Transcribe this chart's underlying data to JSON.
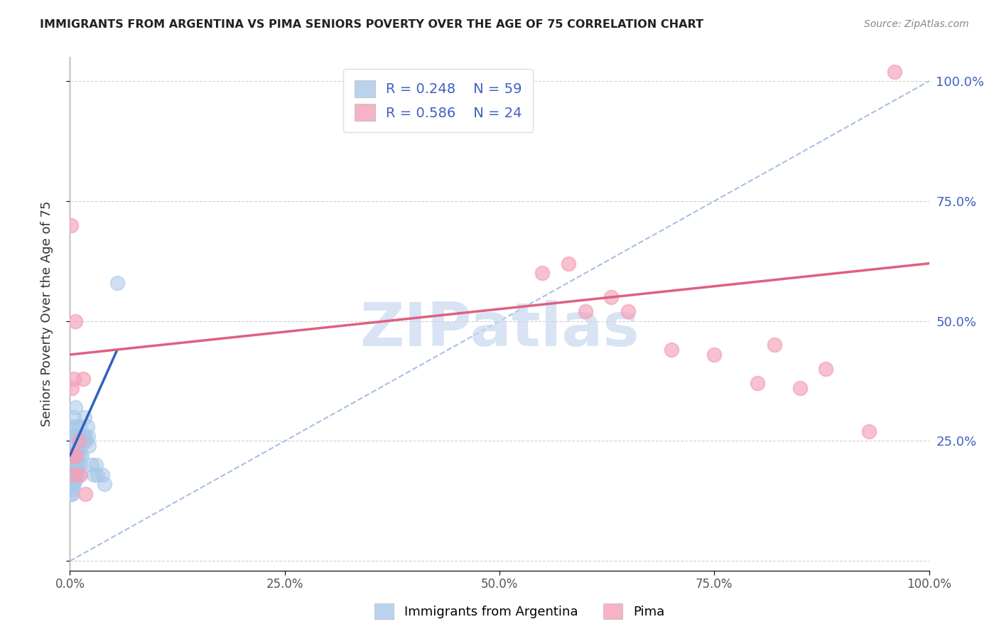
{
  "title": "IMMIGRANTS FROM ARGENTINA VS PIMA SENIORS POVERTY OVER THE AGE OF 75 CORRELATION CHART",
  "source": "Source: ZipAtlas.com",
  "ylabel": "Seniors Poverty Over the Age of 75",
  "xlim": [
    0,
    1.0
  ],
  "ylim": [
    -0.02,
    1.05
  ],
  "xticks": [
    0,
    0.25,
    0.5,
    0.75,
    1.0
  ],
  "xtick_labels": [
    "0.0%",
    "25.0%",
    "50.0%",
    "75.0%",
    "100.0%"
  ],
  "yticks": [
    0.0,
    0.25,
    0.5,
    0.75,
    1.0
  ],
  "ytick_labels_right": [
    "",
    "25.0%",
    "50.0%",
    "75.0%",
    "100.0%"
  ],
  "legend_r1": "R = 0.248",
  "legend_n1": "N = 59",
  "legend_r2": "R = 0.586",
  "legend_n2": "N = 24",
  "blue_color": "#a8c8e8",
  "pink_color": "#f4a0b8",
  "blue_line_color": "#3060c0",
  "pink_line_color": "#e06080",
  "dash_color": "#a0b8e0",
  "watermark_color": "#c8d8f0",
  "blue_x": [
    0.001,
    0.001,
    0.001,
    0.001,
    0.001,
    0.002,
    0.002,
    0.002,
    0.002,
    0.002,
    0.002,
    0.003,
    0.003,
    0.003,
    0.003,
    0.003,
    0.004,
    0.004,
    0.004,
    0.004,
    0.005,
    0.005,
    0.005,
    0.005,
    0.006,
    0.006,
    0.006,
    0.006,
    0.007,
    0.007,
    0.007,
    0.008,
    0.008,
    0.008,
    0.009,
    0.009,
    0.01,
    0.01,
    0.011,
    0.011,
    0.012,
    0.012,
    0.013,
    0.014,
    0.015,
    0.016,
    0.017,
    0.018,
    0.019,
    0.02,
    0.021,
    0.022,
    0.025,
    0.028,
    0.03,
    0.032,
    0.038,
    0.04,
    0.055
  ],
  "blue_y": [
    0.14,
    0.16,
    0.17,
    0.18,
    0.2,
    0.14,
    0.16,
    0.18,
    0.2,
    0.22,
    0.25,
    0.15,
    0.17,
    0.2,
    0.22,
    0.28,
    0.18,
    0.2,
    0.22,
    0.26,
    0.16,
    0.18,
    0.22,
    0.3,
    0.17,
    0.19,
    0.22,
    0.32,
    0.18,
    0.2,
    0.28,
    0.2,
    0.23,
    0.26,
    0.2,
    0.22,
    0.18,
    0.24,
    0.22,
    0.28,
    0.2,
    0.26,
    0.24,
    0.22,
    0.26,
    0.25,
    0.3,
    0.26,
    0.25,
    0.28,
    0.26,
    0.24,
    0.2,
    0.18,
    0.2,
    0.18,
    0.18,
    0.16,
    0.58
  ],
  "pink_x": [
    0.001,
    0.002,
    0.003,
    0.004,
    0.005,
    0.006,
    0.007,
    0.01,
    0.012,
    0.015,
    0.018,
    0.55,
    0.58,
    0.6,
    0.63,
    0.65,
    0.7,
    0.75,
    0.8,
    0.82,
    0.85,
    0.88,
    0.93,
    0.96
  ],
  "pink_y": [
    0.7,
    0.36,
    0.22,
    0.18,
    0.38,
    0.5,
    0.22,
    0.25,
    0.18,
    0.38,
    0.14,
    0.6,
    0.62,
    0.52,
    0.55,
    0.52,
    0.44,
    0.43,
    0.37,
    0.45,
    0.36,
    0.4,
    0.27,
    1.02
  ],
  "pink_line_x0": 0.0,
  "pink_line_y0": 0.43,
  "pink_line_x1": 1.0,
  "pink_line_y1": 0.62,
  "blue_line_x0": 0.0,
  "blue_line_y0": 0.22,
  "blue_line_x1": 0.055,
  "blue_line_y1": 0.44
}
